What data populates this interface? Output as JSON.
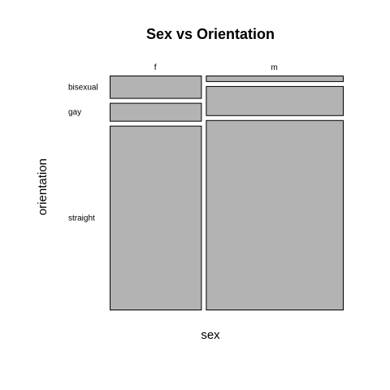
{
  "chart_data": {
    "type": "mosaic",
    "title": "Sex vs Orientation",
    "xlabel": "sex",
    "ylabel": "orientation",
    "x_categories": [
      "f",
      "m"
    ],
    "y_categories": [
      "bisexual",
      "gay",
      "straight"
    ],
    "x_proportions": [
      0.4,
      0.6
    ],
    "y_proportions_by_x": [
      [
        0.1,
        0.08,
        0.82
      ],
      [
        0.025,
        0.13,
        0.845
      ]
    ],
    "fill_color": "#b3b3b3",
    "stroke_color": "#000000"
  }
}
